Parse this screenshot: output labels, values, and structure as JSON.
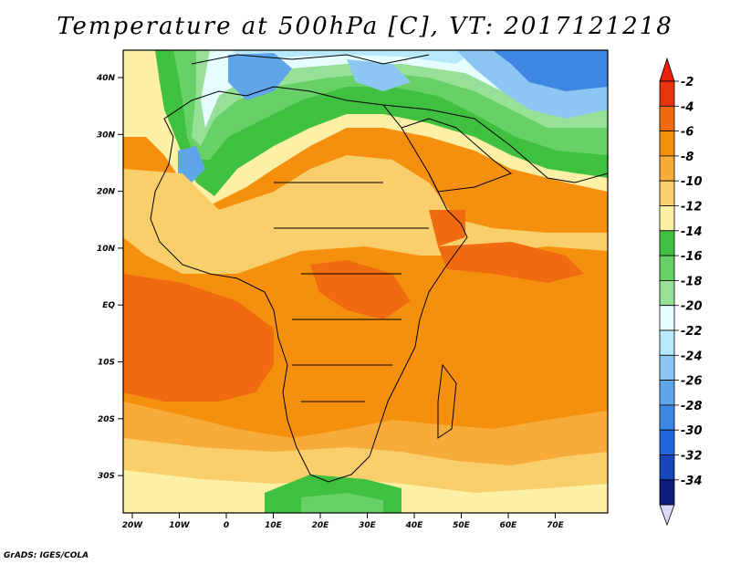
{
  "title": "Temperature at 500hPa [C], VT: 2017121218",
  "footer": "GrADS: IGES/COLA",
  "axes": {
    "lon_labels": [
      "20W",
      "10W",
      "0",
      "10E",
      "20E",
      "30E",
      "40E",
      "50E",
      "60E",
      "70E"
    ],
    "lat_labels": [
      "40N",
      "30N",
      "20N",
      "10N",
      "EQ",
      "10S",
      "20S",
      "30S"
    ]
  },
  "colorbar": {
    "labels": [
      "-2",
      "-4",
      "-6",
      "-8",
      "-10",
      "-12",
      "-14",
      "-16",
      "-18",
      "-20",
      "-22",
      "-24",
      "-26",
      "-28",
      "-30",
      "-32",
      "-34"
    ],
    "colors": [
      "#e8340e",
      "#f06a10",
      "#f5900e",
      "#f7ab3a",
      "#f9cf6b",
      "#fbf0a6",
      "#3fc03f",
      "#67d067",
      "#97e097",
      "#e5fdfd",
      "#b7e8fb",
      "#8bc7f2",
      "#5fa5ea",
      "#3d87e3",
      "#2166d9",
      "#1746b8",
      "#0e1c7a"
    ],
    "top_color": "#e8200c",
    "bottom_color": "#d8d8f8"
  }
}
